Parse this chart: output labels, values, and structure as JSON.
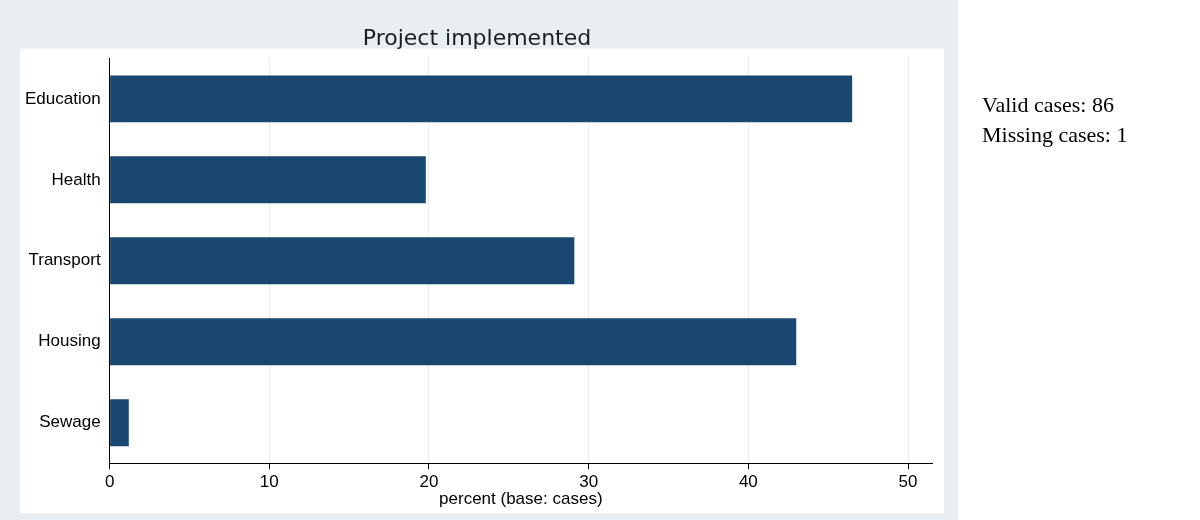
{
  "chart_data": {
    "type": "bar",
    "orientation": "horizontal",
    "title": "Project implemented",
    "xlabel": "percent (base: cases)",
    "categories": [
      "Education",
      "Health",
      "Transport",
      "Housing",
      "Sewage"
    ],
    "values": [
      46.5,
      19.8,
      29.1,
      43.0,
      1.2
    ],
    "color": "#1a476f",
    "xlim": [
      0,
      51.5
    ],
    "xticks": [
      0,
      10,
      20,
      30,
      40,
      50
    ],
    "grid": "x",
    "annotations": [
      "Valid cases: 86",
      "Missing cases: 1"
    ]
  }
}
